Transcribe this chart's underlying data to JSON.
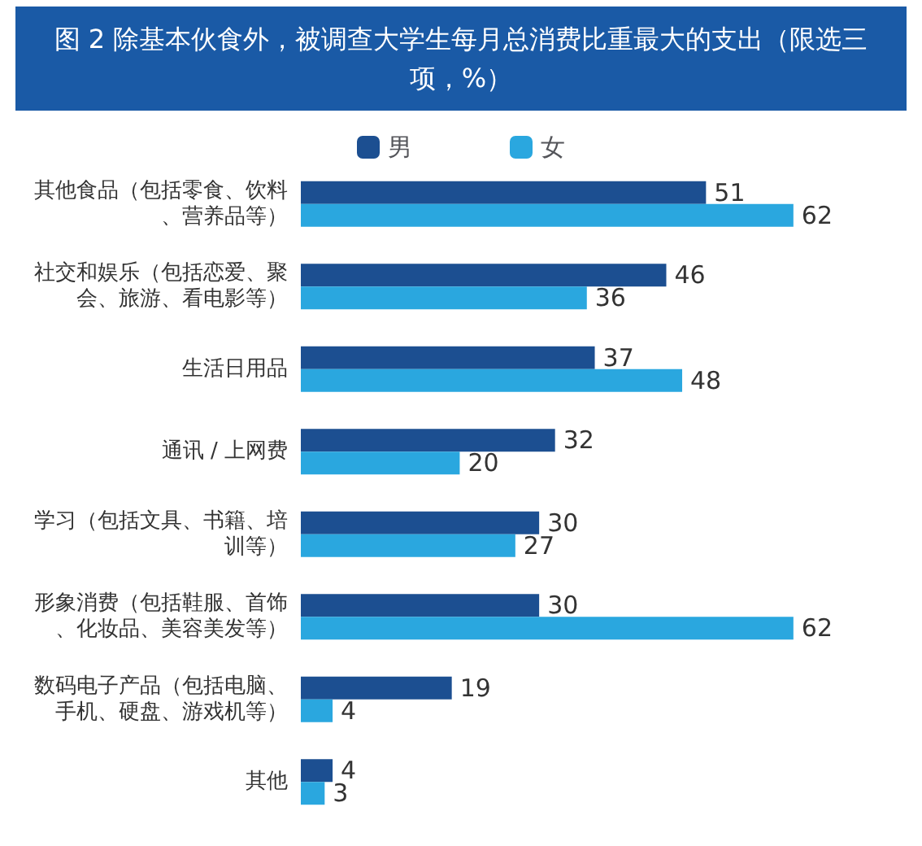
{
  "chart_data": {
    "type": "bar",
    "orientation": "horizontal",
    "title": "图 2 除基本伙食外，被调查大学生每月总消费比重最大的支出（限选三项，%）",
    "categories": [
      "其他食品（包括零食、饮料、营养品等）",
      "社交和娱乐（包括恋爱、聚会、旅游、看电影等）",
      "生活日用品",
      "通讯 / 上网费",
      "学习（包括文具、书籍、培训等）",
      "形象消费（包括鞋服、首饰、化妆品、美容美发等）",
      "数码电子产品（包括电脑、手机、硬盘、游戏机等）",
      "其他"
    ],
    "series": [
      {
        "name": "男",
        "color": "#1c4f91",
        "values": [
          51,
          46,
          37,
          32,
          30,
          30,
          19,
          4
        ]
      },
      {
        "name": "女",
        "color": "#2aa7df",
        "values": [
          62,
          36,
          48,
          20,
          27,
          62,
          4,
          3
        ]
      }
    ],
    "data_labels": true,
    "legend": "top"
  }
}
